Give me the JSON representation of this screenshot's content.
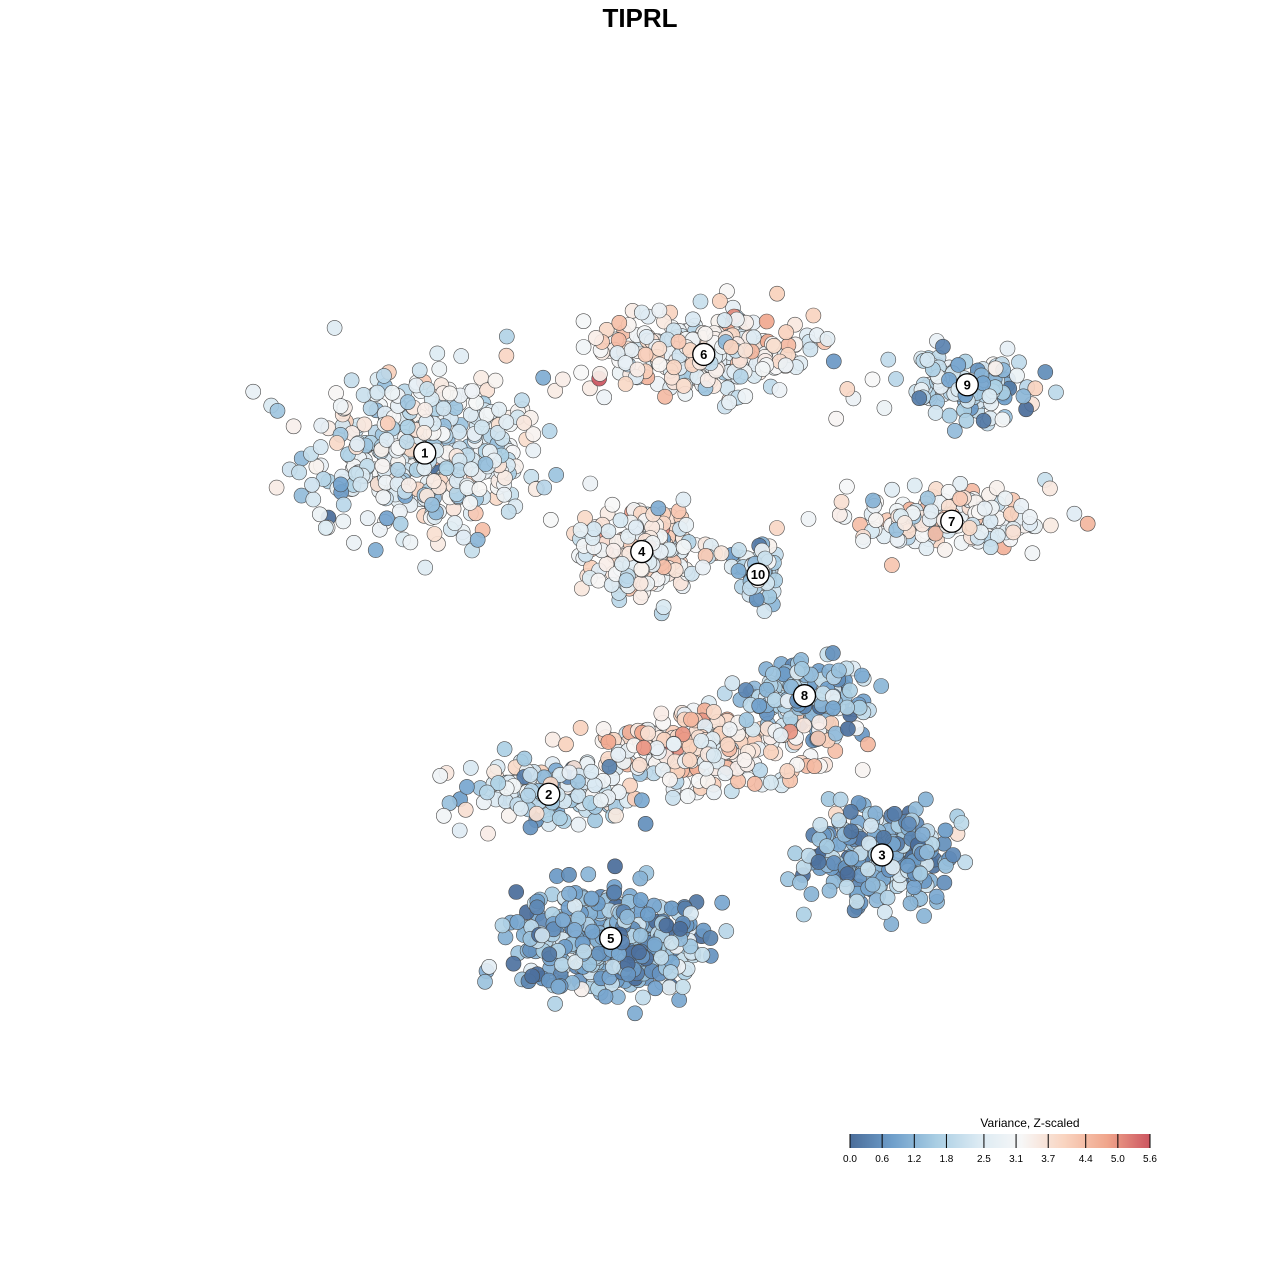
{
  "title": "TIPRL",
  "chart_data": {
    "type": "scatter",
    "title": "TIPRL",
    "xlabel": "",
    "ylabel": "",
    "grid": false,
    "axes_visible": false,
    "legend_placement": "bottom-right",
    "color_scale": {
      "title": "Variance, Z-scaled",
      "min": 0.0,
      "max": 5.6,
      "ticks": [
        0.0,
        0.6,
        1.2,
        1.8,
        2.5,
        3.1,
        3.7,
        4.4,
        5.0,
        5.6
      ],
      "tick_labels": [
        "0.0",
        "0.6",
        "1.2",
        "1.8",
        "2.5",
        "3.1",
        "3.7",
        "4.4",
        "5.0",
        "5.6"
      ],
      "colors": [
        "#4a6d9a",
        "#6f9fcb",
        "#a8cde3",
        "#dbeaf3",
        "#f7f7f7",
        "#f9d4c0",
        "#f0a58b",
        "#cc5560"
      ]
    },
    "clusters": [
      {
        "label": "1",
        "x": -3.1,
        "y": 2.4,
        "mean_value": 2.6,
        "spread": [
          1.4,
          1.0
        ],
        "n": 420
      },
      {
        "label": "2",
        "x": -1.5,
        "y": -2.1,
        "mean_value": 2.2,
        "spread": [
          1.0,
          0.45
        ],
        "n": 150
      },
      {
        "label": "3",
        "x": 2.8,
        "y": -2.9,
        "mean_value": 1.3,
        "spread": [
          0.9,
          0.6
        ],
        "n": 260
      },
      {
        "label": "4",
        "x": -0.3,
        "y": 1.1,
        "mean_value": 3.2,
        "spread": [
          0.65,
          0.5
        ],
        "n": 230
      },
      {
        "label": "5",
        "x": -0.7,
        "y": -4.0,
        "mean_value": 1.2,
        "spread": [
          1.1,
          0.6
        ],
        "n": 430
      },
      {
        "label": "6",
        "x": 0.5,
        "y": 3.7,
        "mean_value": 3.1,
        "spread": [
          1.3,
          0.5
        ],
        "n": 300
      },
      {
        "label": "7",
        "x": 3.7,
        "y": 1.5,
        "mean_value": 3.0,
        "spread": [
          1.2,
          0.35
        ],
        "n": 160
      },
      {
        "label": "8",
        "x": 1.8,
        "y": -0.8,
        "mean_value": 1.4,
        "spread": [
          0.75,
          0.4
        ],
        "n": 170
      },
      {
        "label": "9",
        "x": 3.9,
        "y": 3.3,
        "mean_value": 1.9,
        "spread": [
          0.8,
          0.35
        ],
        "n": 130
      },
      {
        "label": "10",
        "x": 1.2,
        "y": 0.8,
        "mean_value": 2.0,
        "spread": [
          0.25,
          0.35
        ],
        "n": 60
      },
      {
        "label": "",
        "x": 0.6,
        "y": -1.5,
        "mean_value": 3.4,
        "spread": [
          1.4,
          0.45
        ],
        "n": 260
      }
    ],
    "x_range": [
      -6.0,
      6.0
    ],
    "y_range": [
      -6.0,
      6.0
    ]
  }
}
